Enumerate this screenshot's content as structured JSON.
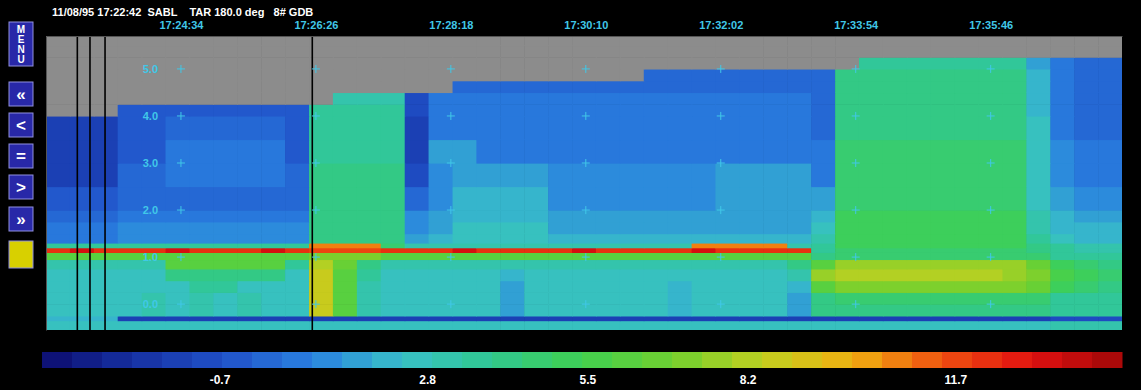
{
  "chart_data": {
    "type": "heatmap",
    "title": "11/08/95 17:22:42  SABL    TAR 180.0 deg   8# GDB",
    "buttons": [
      "MENU",
      "«",
      "<",
      "=",
      ">",
      "»"
    ],
    "xlim": [
      62562,
      63455
    ],
    "xticks": [
      {
        "value": 62674,
        "label": "17:24:34"
      },
      {
        "value": 62786,
        "label": "17:26:26"
      },
      {
        "value": 62898,
        "label": "17:28:18"
      },
      {
        "value": 63010,
        "label": "17:30:10"
      },
      {
        "value": 63122,
        "label": "17:32:02"
      },
      {
        "value": 63234,
        "label": "17:33:54"
      },
      {
        "value": 63346,
        "label": "17:35:46"
      }
    ],
    "ylim": [
      -0.55,
      5.7
    ],
    "yticks": [
      {
        "value": 5,
        "label": "5.0"
      },
      {
        "value": 4,
        "label": "4.0"
      },
      {
        "value": 3,
        "label": "3.0"
      },
      {
        "value": 2,
        "label": "2.0"
      },
      {
        "value": 1,
        "label": "1.0"
      },
      {
        "value": 0,
        "label": "0.0"
      }
    ],
    "grid": true,
    "markers": [
      62588,
      62598.5,
      62611,
      62783
    ],
    "x_edges": [
      62562,
      62581.8,
      62601.7,
      62621.5,
      62641.4,
      62661.2,
      62681.1,
      62700.9,
      62720.8,
      62740.6,
      62760.4,
      62780.3,
      62800.1,
      62820.0,
      62839.8,
      62859.7,
      62879.5,
      62899.4,
      62919.2,
      62939.0,
      62958.9,
      62978.7,
      62998.6,
      63018.4,
      63038.3,
      63058.1,
      63078.0,
      63097.8,
      63117.6,
      63137.5,
      63157.3,
      63177.2,
      63197.0,
      63216.9,
      63236.7,
      63256.6,
      63276.4,
      63296.2,
      63316.1,
      63335.9,
      63355.8,
      63375.6,
      63395.5,
      63415.3,
      63435.2,
      63455
    ],
    "y_edges": [
      -0.55,
      -0.35,
      -0.25,
      0.0,
      0.25,
      0.5,
      0.75,
      0.95,
      1.1,
      1.2,
      1.3,
      1.5,
      1.75,
      2.0,
      2.5,
      3.0,
      3.5,
      4.0,
      4.25,
      4.5,
      4.75,
      5.0,
      5.25,
      5.5,
      5.7
    ],
    "z": [
      [
        2.5,
        2.5,
        2.5,
        2.5,
        2.5,
        2.5,
        2.5,
        2.5,
        2.5,
        2.5,
        2.5,
        2.5,
        2.5,
        2.5,
        2.5,
        2.5,
        2.5,
        2.5,
        2.5,
        2.5,
        2.5,
        2.5,
        2.5,
        2.5,
        2.5,
        2.5,
        2.5,
        2.5,
        2.5,
        2.5,
        2.5,
        2.5,
        2.6,
        2.8,
        2.8,
        2.8,
        2.8,
        2.8,
        2.8,
        2.8,
        2.8,
        2.8,
        3.0,
        3.0,
        3.0
      ],
      [
        2.3,
        2.3,
        2.3,
        -1.5,
        -1.5,
        -1.5,
        -1.5,
        -1.5,
        -1.5,
        -1.5,
        -1.5,
        -1.5,
        -1.5,
        -1.5,
        -1.5,
        -1.5,
        -1.5,
        -1.5,
        -1.5,
        -1.5,
        -1.5,
        -1.5,
        -1.5,
        -1.5,
        -1.5,
        -1.5,
        -1.5,
        -1.5,
        -1.5,
        -1.5,
        -1.5,
        -1.5,
        -1.2,
        -1.2,
        -1.2,
        -1.2,
        -1.2,
        -1.2,
        -1.2,
        -1.2,
        -1.2,
        -1.2,
        -1.0,
        -1.0,
        -1.0
      ],
      [
        2.5,
        2.5,
        2.5,
        2.5,
        3.0,
        2.5,
        3.0,
        2.5,
        3.0,
        2.5,
        2.5,
        8.5,
        6.0,
        3.0,
        2.6,
        2.5,
        2.5,
        2.5,
        2.5,
        1.8,
        2.5,
        2.5,
        2.5,
        2.5,
        2.5,
        2.5,
        2.0,
        2.5,
        2.5,
        2.5,
        2.5,
        1.8,
        4.0,
        4.2,
        4.2,
        4.2,
        4.2,
        4.2,
        4.2,
        4.2,
        4.2,
        4.2,
        3.8,
        3.5,
        3.5
      ],
      [
        2.5,
        2.5,
        2.5,
        2.5,
        3.0,
        2.5,
        3.0,
        2.5,
        3.0,
        2.5,
        2.5,
        8.5,
        6.0,
        3.0,
        2.6,
        2.5,
        2.5,
        2.5,
        2.5,
        1.8,
        2.5,
        2.5,
        2.5,
        2.5,
        2.5,
        2.5,
        2.0,
        2.5,
        2.5,
        2.5,
        2.5,
        1.8,
        4.3,
        4.5,
        4.5,
        4.5,
        4.5,
        4.5,
        4.5,
        4.5,
        4.5,
        4.5,
        3.8,
        3.5,
        3.5
      ],
      [
        2.5,
        2.5,
        2.5,
        2.5,
        2.5,
        2.5,
        3.5,
        3.5,
        2.5,
        2.5,
        2.5,
        8.5,
        6.0,
        3.2,
        2.6,
        2.5,
        2.5,
        2.5,
        2.5,
        1.8,
        2.5,
        2.5,
        2.5,
        2.5,
        2.5,
        2.5,
        2.0,
        2.5,
        2.5,
        2.5,
        2.5,
        2.0,
        6.0,
        7.2,
        7.2,
        7.2,
        7.2,
        7.2,
        7.2,
        7.2,
        7.2,
        6.5,
        5.0,
        4.5,
        4.2
      ],
      [
        2.6,
        2.6,
        2.6,
        2.6,
        2.6,
        4.0,
        4.0,
        4.0,
        4.0,
        4.0,
        2.6,
        8.5,
        6.2,
        3.5,
        2.8,
        2.6,
        2.6,
        2.6,
        2.6,
        2.0,
        2.6,
        2.6,
        2.6,
        2.6,
        2.6,
        2.6,
        2.6,
        2.6,
        2.6,
        2.6,
        2.6,
        3.0,
        7.8,
        8.2,
        8.2,
        8.2,
        8.2,
        8.2,
        8.2,
        8.2,
        7.8,
        7.2,
        5.5,
        5.0,
        4.5
      ],
      [
        3.0,
        3.0,
        3.0,
        3.0,
        3.0,
        6.0,
        6.0,
        6.0,
        6.0,
        6.0,
        3.5,
        8.0,
        6.5,
        4.0,
        3.2,
        3.0,
        3.0,
        3.0,
        3.0,
        3.0,
        3.0,
        3.0,
        3.0,
        3.0,
        3.0,
        3.0,
        3.0,
        3.0,
        3.0,
        3.0,
        3.0,
        4.0,
        6.0,
        7.5,
        7.5,
        7.5,
        7.5,
        7.5,
        7.5,
        7.5,
        7.5,
        6.8,
        5.0,
        4.5,
        4.0
      ],
      [
        6.0,
        6.0,
        6.0,
        6.0,
        6.0,
        6.0,
        6.0,
        6.0,
        6.0,
        6.0,
        6.0,
        7.0,
        7.0,
        7.0,
        6.0,
        6.0,
        6.0,
        6.0,
        6.0,
        6.0,
        6.0,
        6.0,
        6.0,
        6.0,
        6.0,
        6.0,
        6.0,
        6.0,
        6.0,
        6.0,
        6.0,
        6.0,
        4.0,
        4.8,
        4.8,
        4.8,
        4.8,
        4.8,
        4.8,
        4.8,
        4.8,
        4.5,
        3.8,
        3.5,
        3.5
      ],
      [
        12.3,
        13.0,
        12.3,
        12.3,
        12.3,
        13.0,
        12.3,
        12.3,
        12.3,
        13.0,
        12.3,
        11.5,
        11.5,
        11.5,
        12.3,
        12.3,
        12.3,
        13.0,
        12.3,
        12.3,
        12.3,
        12.3,
        13.0,
        12.3,
        12.3,
        12.3,
        12.3,
        13.0,
        12.3,
        12.3,
        12.3,
        12.3,
        3.8,
        4.6,
        4.6,
        4.6,
        4.6,
        4.6,
        4.6,
        4.6,
        4.6,
        4.2,
        3.6,
        3.3,
        3.3
      ],
      [
        3.5,
        3.5,
        3.5,
        3.5,
        3.5,
        3.5,
        3.5,
        3.5,
        3.5,
        3.5,
        3.5,
        10.5,
        10.5,
        10.5,
        4.5,
        3.0,
        3.0,
        3.0,
        3.0,
        3.0,
        3.0,
        3.0,
        3.0,
        3.0,
        3.0,
        3.0,
        3.0,
        10.5,
        10.5,
        10.5,
        10.5,
        3.0,
        3.5,
        5.0,
        5.0,
        5.0,
        5.0,
        5.0,
        5.0,
        5.0,
        5.0,
        4.0,
        3.5,
        3.0,
        3.0
      ],
      [
        0.5,
        0.5,
        0.5,
        1.2,
        1.2,
        1.2,
        1.2,
        1.2,
        1.2,
        1.2,
        1.2,
        4.3,
        4.3,
        4.3,
        4.3,
        1.5,
        2.0,
        2.5,
        2.5,
        2.5,
        2.5,
        2.0,
        2.0,
        2.0,
        2.0,
        2.0,
        2.0,
        2.0,
        2.0,
        2.0,
        2.0,
        2.0,
        3.0,
        5.2,
        5.2,
        5.2,
        5.2,
        5.2,
        5.2,
        5.2,
        5.2,
        3.5,
        2.5,
        2.2,
        2.2
      ],
      [
        0.4,
        0.4,
        0.4,
        1.0,
        1.0,
        1.0,
        1.0,
        1.0,
        1.0,
        1.0,
        1.0,
        4.2,
        4.2,
        4.2,
        4.2,
        1.2,
        1.8,
        2.4,
        2.4,
        2.4,
        2.4,
        1.8,
        1.8,
        1.8,
        1.8,
        1.8,
        1.8,
        1.8,
        1.8,
        1.8,
        1.8,
        1.8,
        2.5,
        5.2,
        5.2,
        5.2,
        5.2,
        5.2,
        5.2,
        5.2,
        5.2,
        3.2,
        2.2,
        2.0,
        2.0
      ],
      [
        0.3,
        0.3,
        0.3,
        0.8,
        0.8,
        0.8,
        0.8,
        0.8,
        0.8,
        0.8,
        0.8,
        4.2,
        4.2,
        4.2,
        4.2,
        1.0,
        1.6,
        2.3,
        2.3,
        2.3,
        2.3,
        1.6,
        1.6,
        1.6,
        1.6,
        1.6,
        1.6,
        1.6,
        1.6,
        1.6,
        1.6,
        1.6,
        2.2,
        5.0,
        5.0,
        5.0,
        5.0,
        5.0,
        5.0,
        5.0,
        5.0,
        3.0,
        2.0,
        1.8,
        1.8
      ],
      [
        -0.5,
        -0.5,
        -0.5,
        0.2,
        0.2,
        0.2,
        0.2,
        0.2,
        0.2,
        0.2,
        0.2,
        4.0,
        4.0,
        4.0,
        4.0,
        0.2,
        1.2,
        2.0,
        2.0,
        2.0,
        2.0,
        1.2,
        1.2,
        1.2,
        1.2,
        1.2,
        1.2,
        1.2,
        1.6,
        1.6,
        1.6,
        1.6,
        1.5,
        4.8,
        4.8,
        4.8,
        4.8,
        4.8,
        4.8,
        4.8,
        4.8,
        2.8,
        1.5,
        1.2,
        1.2
      ],
      [
        -1.2,
        -1.2,
        -1.2,
        0.0,
        0.0,
        0.4,
        0.4,
        0.4,
        0.4,
        0.4,
        0.0,
        4.0,
        4.0,
        4.0,
        4.0,
        -1.0,
        1.0,
        1.6,
        1.6,
        1.6,
        1.6,
        1.0,
        1.0,
        1.0,
        1.0,
        1.0,
        1.0,
        1.0,
        1.4,
        1.4,
        1.4,
        1.4,
        0.8,
        4.6,
        4.6,
        4.6,
        4.6,
        4.6,
        4.6,
        4.6,
        4.6,
        2.6,
        1.2,
        0.8,
        0.8
      ],
      [
        -1.3,
        -1.3,
        -1.3,
        -0.2,
        -0.2,
        0.4,
        0.4,
        0.4,
        0.4,
        0.4,
        -0.2,
        3.8,
        3.8,
        3.8,
        3.8,
        -1.2,
        1.4,
        1.4,
        0.8,
        0.8,
        0.8,
        0.8,
        0.8,
        0.8,
        0.8,
        0.8,
        0.8,
        0.8,
        0.8,
        0.8,
        0.8,
        0.8,
        0.5,
        4.4,
        4.4,
        4.4,
        4.4,
        4.4,
        4.4,
        4.4,
        4.4,
        2.5,
        1.0,
        0.5,
        0.5
      ],
      [
        -1.4,
        -1.4,
        -1.4,
        -0.4,
        -0.4,
        0.2,
        0.2,
        0.2,
        0.2,
        0.2,
        -0.4,
        3.6,
        3.6,
        3.6,
        3.6,
        -1.2,
        0.6,
        0.6,
        0.6,
        0.6,
        0.6,
        0.6,
        0.6,
        0.6,
        0.6,
        0.6,
        0.6,
        0.6,
        0.6,
        0.6,
        0.6,
        0.6,
        0.3,
        4.3,
        4.3,
        4.3,
        4.3,
        4.3,
        4.3,
        4.3,
        4.3,
        2.4,
        0.8,
        0.3,
        0.2
      ],
      [
        null,
        null,
        null,
        -0.5,
        -0.5,
        -0.5,
        -0.5,
        -0.5,
        -0.5,
        -0.5,
        -0.5,
        3.4,
        3.4,
        3.4,
        3.4,
        -1.0,
        0.5,
        0.5,
        0.5,
        0.5,
        0.5,
        0.5,
        0.5,
        0.5,
        0.5,
        0.5,
        0.5,
        0.5,
        0.5,
        0.5,
        0.5,
        0.5,
        0.3,
        4.2,
        4.2,
        4.2,
        4.2,
        4.2,
        4.2,
        4.2,
        4.2,
        2.3,
        0.8,
        0.3,
        0.2
      ],
      [
        null,
        null,
        null,
        null,
        null,
        null,
        null,
        null,
        null,
        null,
        null,
        null,
        3.2,
        3.2,
        3.2,
        -0.8,
        0.4,
        0.4,
        0.4,
        0.4,
        0.4,
        0.4,
        0.4,
        0.4,
        0.4,
        0.4,
        0.4,
        0.4,
        0.4,
        0.4,
        0.4,
        0.4,
        0.2,
        4.1,
        4.1,
        4.1,
        4.1,
        4.1,
        4.1,
        4.1,
        4.1,
        2.2,
        0.7,
        0.2,
        0.1
      ],
      [
        null,
        null,
        null,
        null,
        null,
        null,
        null,
        null,
        null,
        null,
        null,
        null,
        null,
        null,
        null,
        null,
        null,
        0.3,
        0.3,
        0.3,
        0.3,
        0.3,
        0.3,
        0.3,
        0.3,
        0.3,
        0.3,
        0.3,
        0.3,
        0.3,
        0.3,
        0.3,
        0.2,
        4.0,
        4.0,
        4.0,
        4.0,
        4.0,
        4.0,
        4.0,
        4.0,
        2.0,
        0.6,
        0.2,
        0.1
      ],
      [
        null,
        null,
        null,
        null,
        null,
        null,
        null,
        null,
        null,
        null,
        null,
        null,
        null,
        null,
        null,
        null,
        null,
        null,
        null,
        null,
        null,
        null,
        null,
        null,
        null,
        0.3,
        0.3,
        0.3,
        0.3,
        0.3,
        0.3,
        0.3,
        0.2,
        3.9,
        3.9,
        3.9,
        3.9,
        3.9,
        3.9,
        3.9,
        3.9,
        1.9,
        0.6,
        0.2,
        0.1
      ],
      [
        null,
        null,
        null,
        null,
        null,
        null,
        null,
        null,
        null,
        null,
        null,
        null,
        null,
        null,
        null,
        null,
        null,
        null,
        null,
        null,
        null,
        null,
        null,
        null,
        null,
        null,
        null,
        null,
        null,
        null,
        null,
        null,
        null,
        null,
        3.8,
        3.8,
        3.8,
        3.8,
        3.8,
        3.8,
        3.8,
        1.8,
        0.5,
        0.1,
        0.0
      ],
      [
        null,
        null,
        null,
        null,
        null,
        null,
        null,
        null,
        null,
        null,
        null,
        null,
        null,
        null,
        null,
        null,
        null,
        null,
        null,
        null,
        null,
        null,
        null,
        null,
        null,
        null,
        null,
        null,
        null,
        null,
        null,
        null,
        null,
        null,
        null,
        null,
        null,
        null,
        null,
        null,
        null,
        null,
        null,
        null,
        null
      ],
      [
        null,
        null,
        null,
        null,
        null,
        null,
        null,
        null,
        null,
        null,
        null,
        null,
        null,
        null,
        null,
        null,
        null,
        null,
        null,
        null,
        null,
        null,
        null,
        null,
        null,
        null,
        null,
        null,
        null,
        null,
        null,
        null,
        null,
        null,
        null,
        null,
        null,
        null,
        null,
        null,
        null,
        null,
        null,
        null,
        null
      ]
    ],
    "colorbar": {
      "range": [
        -3.7,
        14.5
      ],
      "ticks": [
        -0.7,
        2.8,
        5.5,
        8.2,
        11.7
      ]
    }
  }
}
